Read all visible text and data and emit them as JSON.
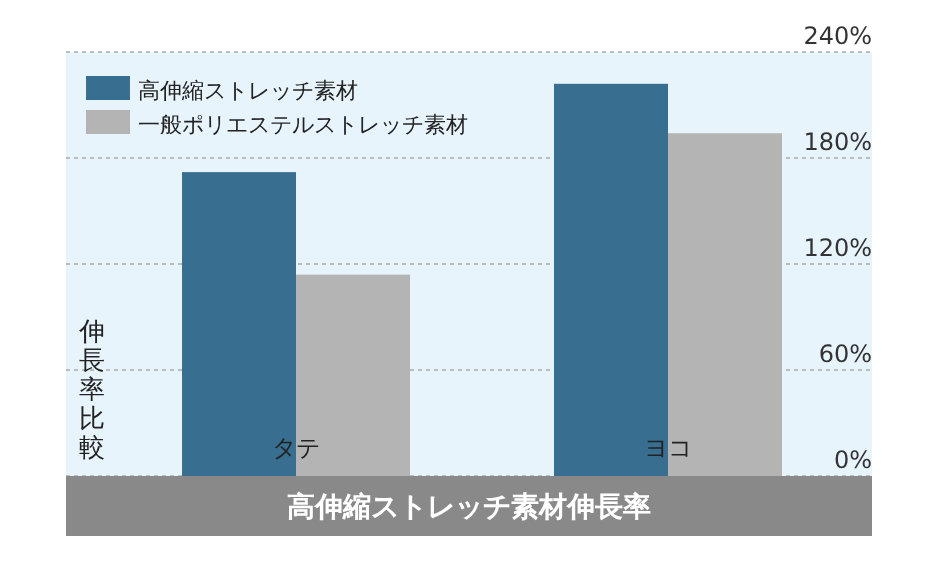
{
  "chart_data": {
    "type": "bar",
    "title": "高伸縮ストレッチ素材伸長率",
    "ylabel": "伸長率比較",
    "categories": [
      "タテ",
      "ヨコ"
    ],
    "series": [
      {
        "name": "高伸縮ストレッチ素材",
        "color": "#386f91",
        "values": [
          172,
          222
        ]
      },
      {
        "name": "一般ポリエステルストレッチ素材",
        "color": "#b4b4b4",
        "values": [
          114,
          194
        ]
      }
    ],
    "ylim": [
      0,
      240
    ],
    "yticks": [
      {
        "value": 0,
        "label": "0%"
      },
      {
        "value": 60,
        "label": "60%"
      },
      {
        "value": 120,
        "label": "120%"
      },
      {
        "value": 180,
        "label": "180%"
      },
      {
        "value": 240,
        "label": "240%"
      }
    ],
    "grid": "y",
    "legend": "top left"
  }
}
